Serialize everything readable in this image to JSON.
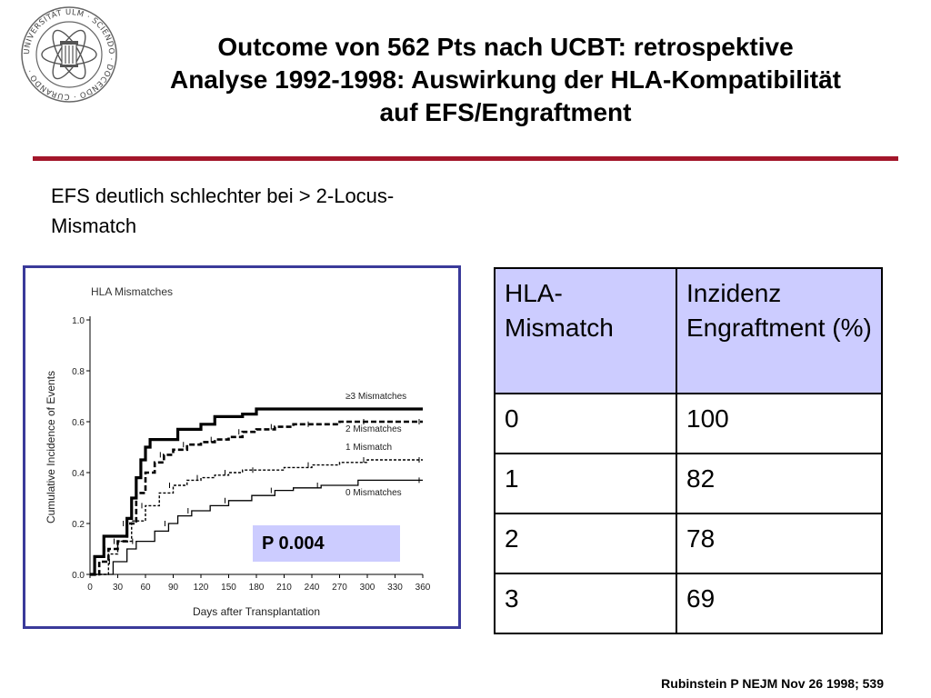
{
  "title": {
    "line1": "Outcome von 562 Pts nach UCBT: retrospektive",
    "line2": "Analyse 1992-1998: Auswirkung der HLA-Kompatibilität",
    "line3": "auf EFS/Engraftment"
  },
  "logo": {
    "text": "UNIVERSITÄT ULM · SCIENDO · DOCENDO · CURANDO ·",
    "accent": "#a3162a"
  },
  "bullet": "EFS deutlich schlechter bei > 2-Locus-Mismatch",
  "p_value": "P 0.004",
  "source": "Rubinstein P NEJM Nov 26 1998; 539",
  "table": {
    "headers": [
      "HLA-Mismatch",
      "Inzidenz Engraftment (%)"
    ],
    "rows": [
      [
        "0",
        "100"
      ],
      [
        "1",
        "82"
      ],
      [
        "2",
        "78"
      ],
      [
        "3",
        "69"
      ]
    ],
    "header_bg": "#ccccff"
  },
  "chart_data": {
    "type": "line",
    "title": "HLA Mismatches",
    "xlabel": "Days after Transplantation",
    "ylabel": "Cumulative Incidence of Events",
    "xlim": [
      0,
      360
    ],
    "ylim": [
      0,
      1.0
    ],
    "xticks": [
      0,
      30,
      60,
      90,
      120,
      150,
      180,
      210,
      240,
      270,
      300,
      330,
      360
    ],
    "yticks": [
      0.0,
      0.2,
      0.4,
      0.6,
      0.8,
      1.0
    ],
    "grid": false,
    "series": [
      {
        "name": "≥3 Mismatches",
        "style": "thick",
        "x": [
          0,
          5,
          15,
          25,
          40,
          45,
          50,
          55,
          60,
          65,
          90,
          95,
          115,
          120,
          135,
          165,
          180,
          240,
          360
        ],
        "y": [
          0,
          0.07,
          0.15,
          0.15,
          0.22,
          0.3,
          0.38,
          0.45,
          0.5,
          0.53,
          0.53,
          0.57,
          0.57,
          0.59,
          0.62,
          0.63,
          0.65,
          0.65,
          0.65
        ]
      },
      {
        "name": "2 Mismatches",
        "style": "dashed-bold",
        "x": [
          0,
          10,
          20,
          30,
          40,
          50,
          60,
          70,
          80,
          90,
          105,
          120,
          135,
          150,
          165,
          180,
          200,
          220,
          240,
          270,
          300,
          330,
          360
        ],
        "y": [
          0,
          0.05,
          0.1,
          0.13,
          0.2,
          0.32,
          0.4,
          0.44,
          0.47,
          0.49,
          0.51,
          0.52,
          0.53,
          0.54,
          0.56,
          0.57,
          0.58,
          0.59,
          0.59,
          0.6,
          0.6,
          0.6,
          0.6
        ]
      },
      {
        "name": "1 Mismatch",
        "style": "dotted-ticks",
        "x": [
          0,
          20,
          30,
          45,
          60,
          75,
          90,
          105,
          120,
          135,
          150,
          165,
          180,
          210,
          240,
          270,
          300,
          330,
          360
        ],
        "y": [
          0,
          0.08,
          0.13,
          0.21,
          0.27,
          0.32,
          0.35,
          0.37,
          0.38,
          0.39,
          0.4,
          0.41,
          0.41,
          0.42,
          0.43,
          0.44,
          0.45,
          0.45,
          0.45
        ]
      },
      {
        "name": "0 Mismatches",
        "style": "thin",
        "x": [
          0,
          22,
          25,
          40,
          50,
          70,
          85,
          95,
          110,
          130,
          150,
          175,
          200,
          220,
          250,
          290,
          360
        ],
        "y": [
          0,
          0,
          0.05,
          0.1,
          0.13,
          0.17,
          0.2,
          0.23,
          0.25,
          0.27,
          0.29,
          0.31,
          0.33,
          0.34,
          0.35,
          0.37,
          0.37
        ]
      }
    ]
  }
}
